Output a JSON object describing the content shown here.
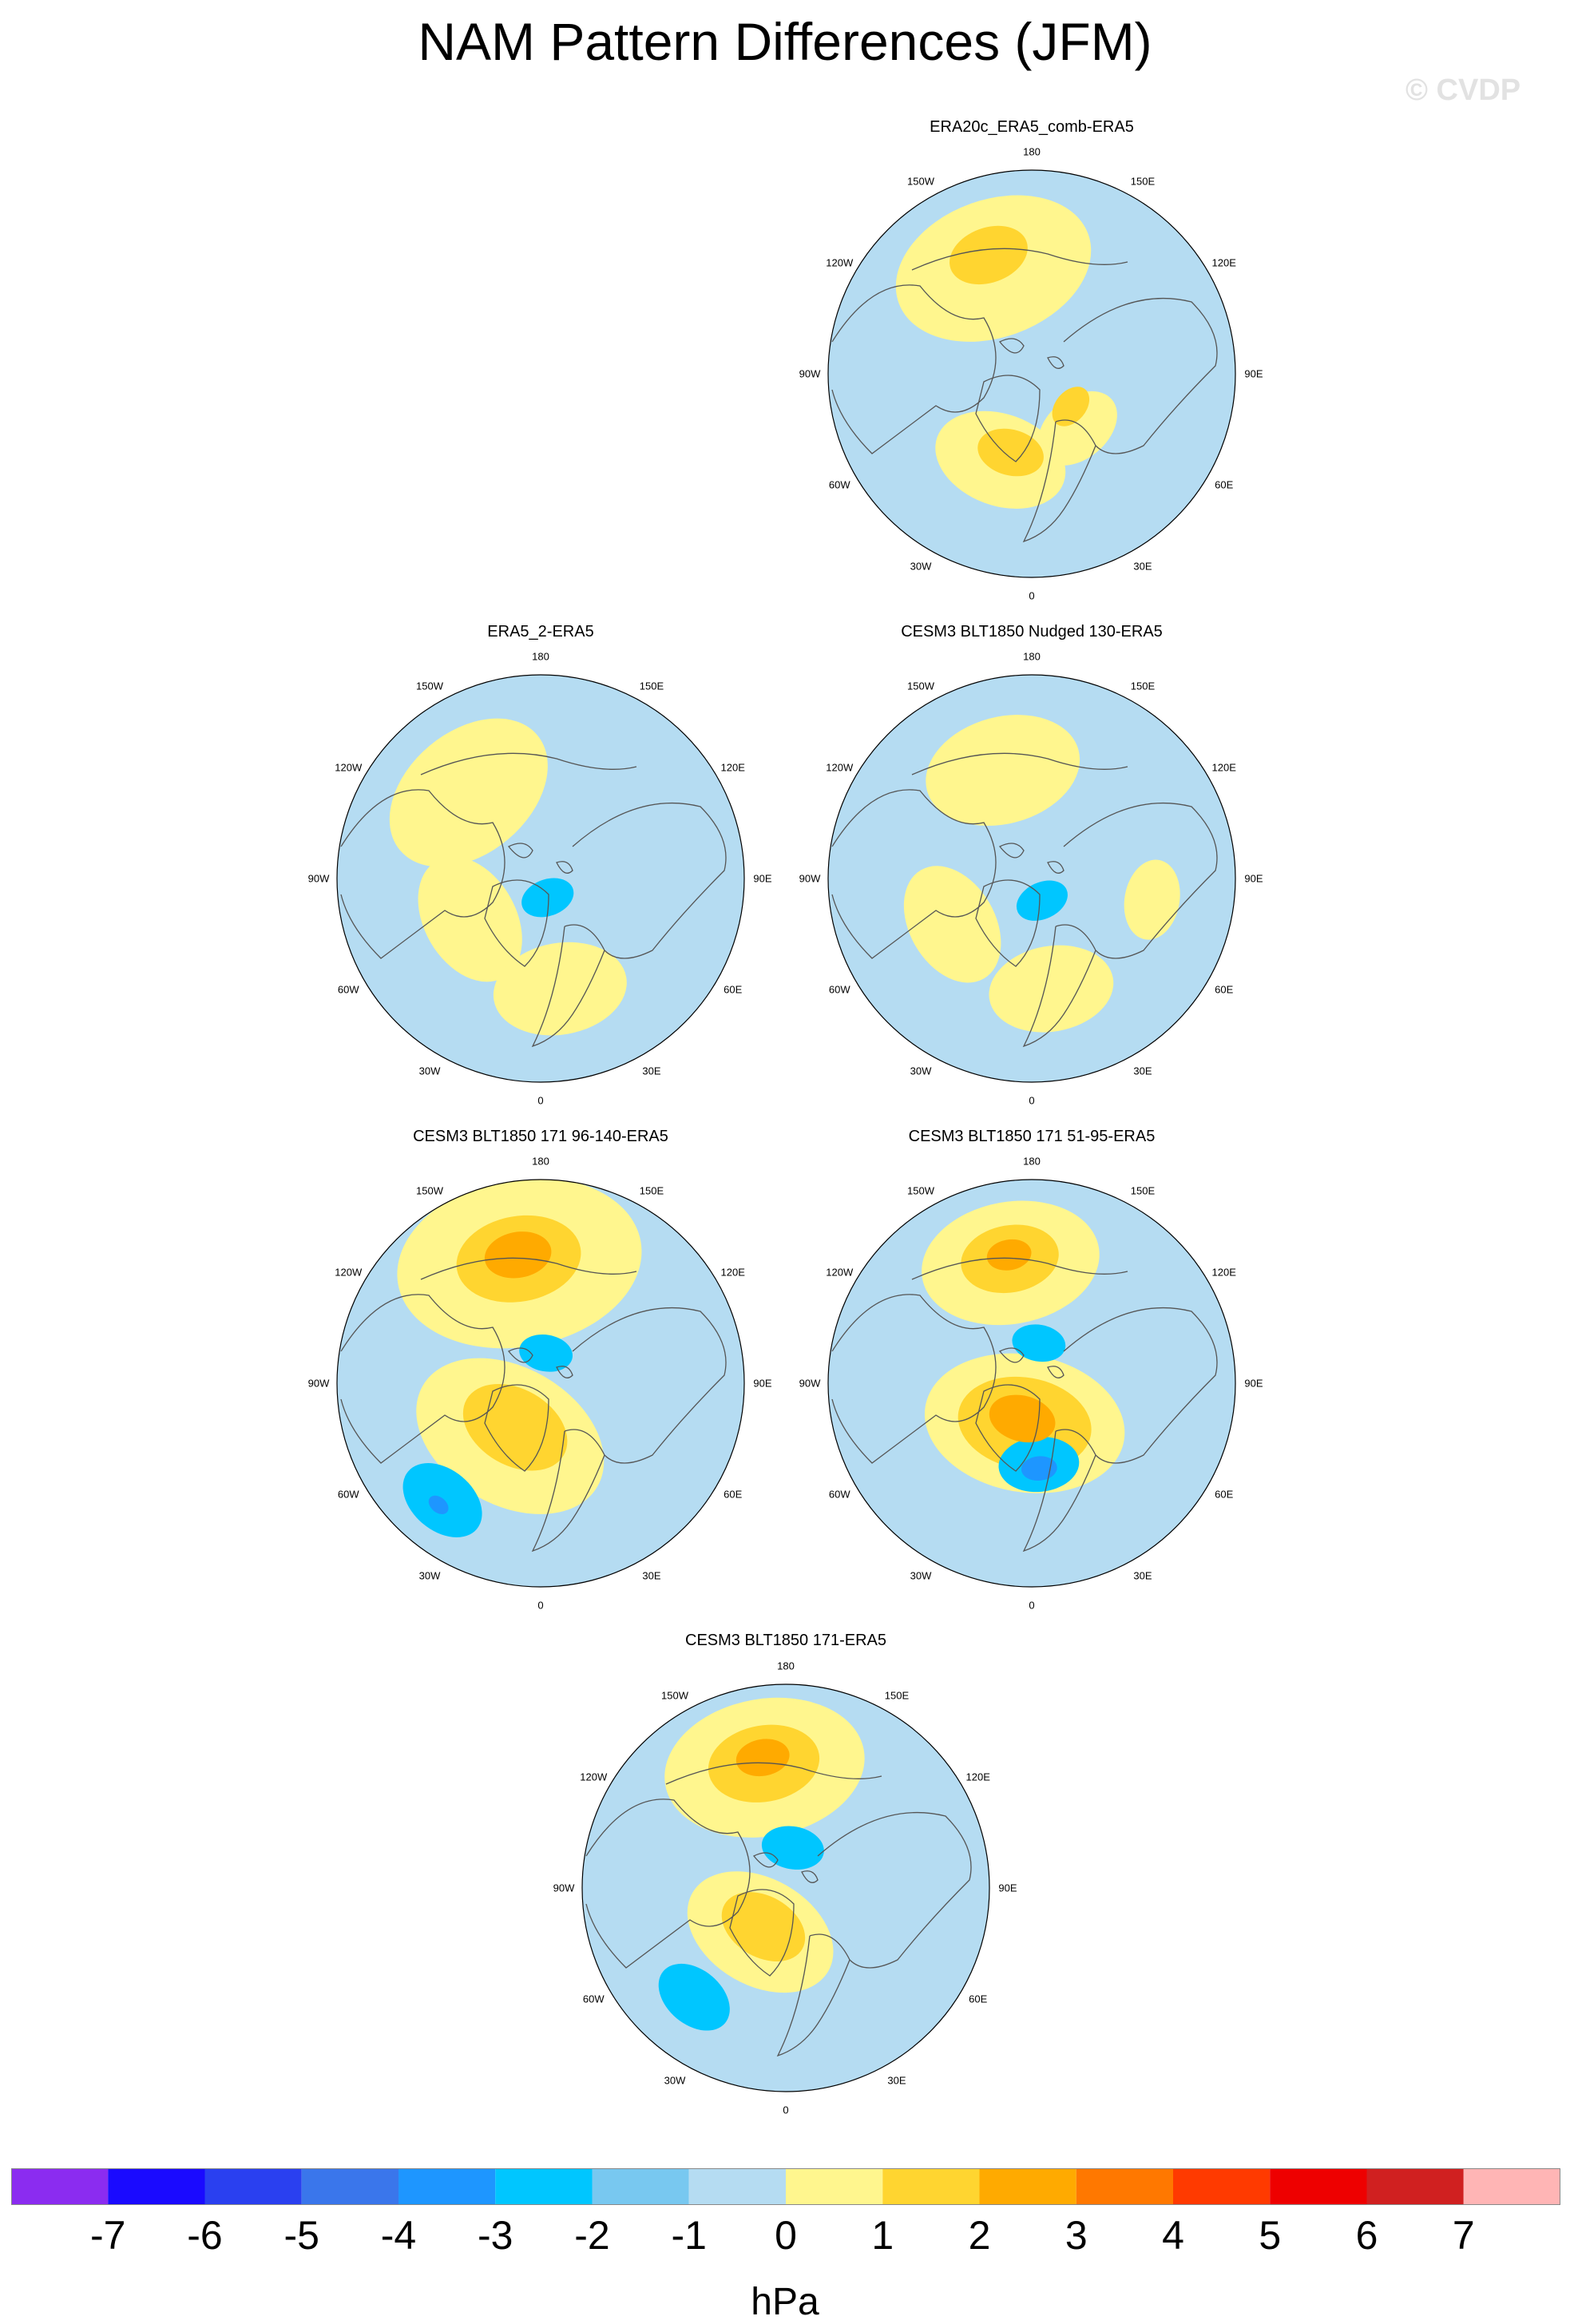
{
  "title": "NAM Pattern Differences (JFM)",
  "watermark": "© CVDP",
  "units": "hPa",
  "colors": {
    "ocean_neutral": "#b5dcf2",
    "coast": "#555555"
  },
  "lon_labels": [
    "180",
    "150E",
    "120E",
    "90E",
    "60E",
    "30E",
    "0",
    "30W",
    "60W",
    "90W",
    "120W",
    "150W"
  ],
  "panels": [
    {
      "title": "ERA20c_ERA5_comb-ERA5",
      "anomalies": [
        {
          "level": 1,
          "lon": 200,
          "r": 0.55,
          "size": 0.45
        },
        {
          "level": 2,
          "lon": 200,
          "r": 0.62,
          "size": 0.18
        },
        {
          "level": 1,
          "lon": 340,
          "r": 0.45,
          "size": 0.3
        },
        {
          "level": 2,
          "lon": 345,
          "r": 0.4,
          "size": 0.15
        },
        {
          "level": 1,
          "lon": 40,
          "r": 0.35,
          "size": 0.2
        },
        {
          "level": 2,
          "lon": 50,
          "r": 0.25,
          "size": 0.1
        }
      ]
    },
    {
      "title": "ERA5_2-ERA5",
      "anomalies": [
        {
          "level": 1,
          "lon": 220,
          "r": 0.55,
          "size": 0.4
        },
        {
          "level": 1,
          "lon": 300,
          "r": 0.4,
          "size": 0.3
        },
        {
          "level": 1,
          "lon": 10,
          "r": 0.55,
          "size": 0.3
        },
        {
          "level": -2,
          "lon": 20,
          "r": 0.1,
          "size": 0.12
        }
      ]
    },
    {
      "title": "CESM3 BLT1850 Nudged 130-ERA5",
      "anomalies": [
        {
          "level": 1,
          "lon": 195,
          "r": 0.55,
          "size": 0.35
        },
        {
          "level": 1,
          "lon": 300,
          "r": 0.45,
          "size": 0.28
        },
        {
          "level": 1,
          "lon": 10,
          "r": 0.55,
          "size": 0.28
        },
        {
          "level": 1,
          "lon": 80,
          "r": 0.6,
          "size": 0.18
        },
        {
          "level": -2,
          "lon": 25,
          "r": 0.12,
          "size": 0.12
        }
      ]
    },
    {
      "title": "CESM3 BLT1850 171 96-140-ERA5",
      "anomalies": [
        {
          "level": 1,
          "lon": 190,
          "r": 0.6,
          "size": 0.55
        },
        {
          "level": 2,
          "lon": 190,
          "r": 0.62,
          "size": 0.28
        },
        {
          "level": 3,
          "lon": 190,
          "r": 0.64,
          "size": 0.15
        },
        {
          "level": -2,
          "lon": 170,
          "r": 0.15,
          "size": 0.12
        },
        {
          "level": 1,
          "lon": 330,
          "r": 0.3,
          "size": 0.45
        },
        {
          "level": 2,
          "lon": 330,
          "r": 0.25,
          "size": 0.25
        },
        {
          "level": -2,
          "lon": 320,
          "r": 0.75,
          "size": 0.2
        },
        {
          "level": -3,
          "lon": 320,
          "r": 0.78,
          "size": 0.05
        }
      ]
    },
    {
      "title": "CESM3 BLT1850 171 51-95-ERA5",
      "anomalies": [
        {
          "level": 1,
          "lon": 190,
          "r": 0.6,
          "size": 0.4
        },
        {
          "level": 2,
          "lon": 190,
          "r": 0.62,
          "size": 0.22
        },
        {
          "level": 3,
          "lon": 190,
          "r": 0.64,
          "size": 0.1
        },
        {
          "level": -2,
          "lon": 170,
          "r": 0.2,
          "size": 0.12
        },
        {
          "level": 1,
          "lon": 350,
          "r": 0.2,
          "size": 0.45
        },
        {
          "level": 2,
          "lon": 350,
          "r": 0.2,
          "size": 0.3
        },
        {
          "level": 3,
          "lon": 345,
          "r": 0.18,
          "size": 0.15
        },
        {
          "level": -2,
          "lon": 5,
          "r": 0.4,
          "size": 0.18
        },
        {
          "level": -3,
          "lon": 5,
          "r": 0.42,
          "size": 0.08
        }
      ]
    },
    {
      "title": "CESM3 BLT1850 171-ERA5",
      "anomalies": [
        {
          "level": 1,
          "lon": 190,
          "r": 0.6,
          "size": 0.45
        },
        {
          "level": 2,
          "lon": 190,
          "r": 0.62,
          "size": 0.25
        },
        {
          "level": 3,
          "lon": 190,
          "r": 0.65,
          "size": 0.12
        },
        {
          "level": -2,
          "lon": 170,
          "r": 0.2,
          "size": 0.14
        },
        {
          "level": 1,
          "lon": 330,
          "r": 0.25,
          "size": 0.35
        },
        {
          "level": 2,
          "lon": 330,
          "r": 0.22,
          "size": 0.2
        },
        {
          "level": -2,
          "lon": 320,
          "r": 0.7,
          "size": 0.18
        }
      ]
    }
  ],
  "colorbar": {
    "levels": [
      "-7",
      "-6",
      "-5",
      "-4",
      "-3",
      "-2",
      "-1",
      "0",
      "1",
      "2",
      "3",
      "4",
      "5",
      "6",
      "7"
    ],
    "colors": [
      "#8b2cf0",
      "#1a0aff",
      "#2a40f0",
      "#3a76eb",
      "#1e96ff",
      "#00c6ff",
      "#78c8f0",
      "#b5dcf2",
      "#fff68e",
      "#ffd530",
      "#ffaa00",
      "#ff7800",
      "#ff3a00",
      "#ee0000",
      "#d02020",
      "#ffb5b5"
    ]
  }
}
